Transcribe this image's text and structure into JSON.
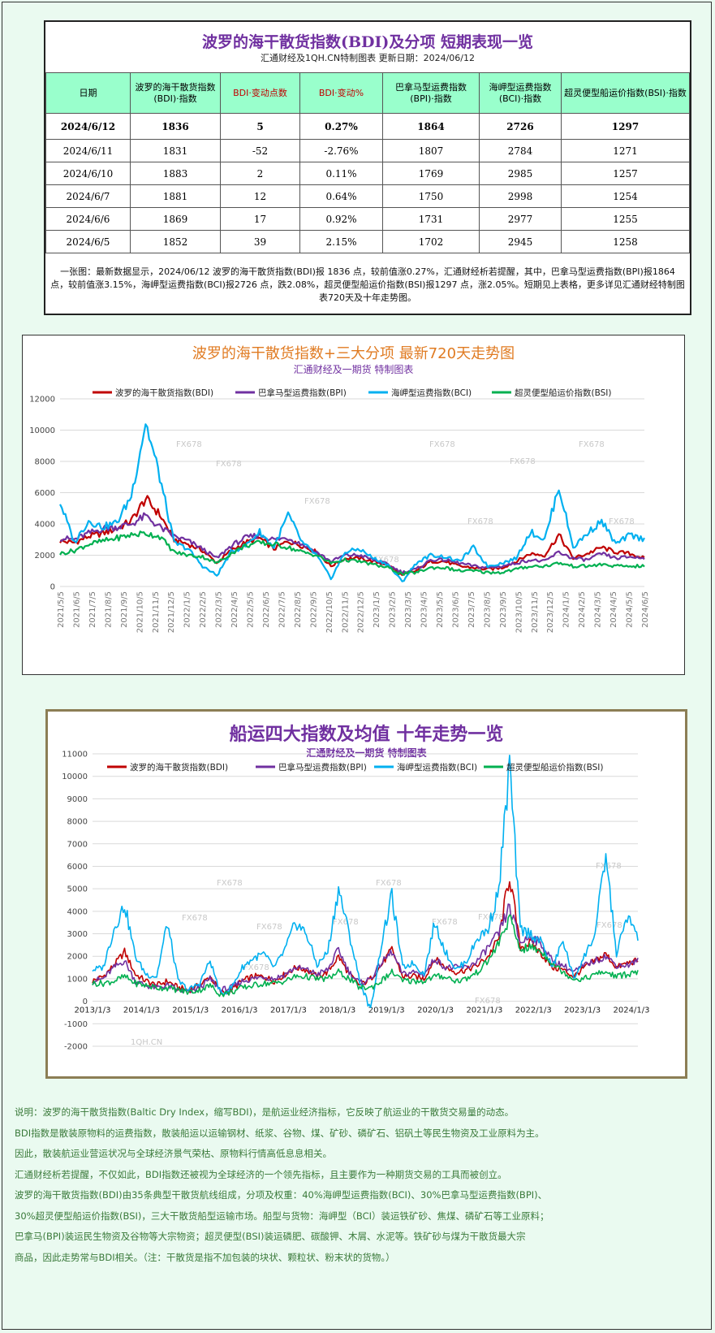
{
  "table": {
    "title": "波罗的海干散货指数(BDI)及分项 短期表现一览",
    "subtitle": "汇通财经及1QH.CN特制图表 更新日期：2024/06/12",
    "headers": [
      "日期",
      "波罗的海干散货指数(BDI)·指数",
      "BDI·变动点数",
      "BDI·变动%",
      "巴拿马型运费指数(BPI)·指数",
      "海岬型运费指数(BCI)·指数",
      "超灵便型船运价指数(BSI)·指数"
    ],
    "rows": [
      [
        "2024/6/12",
        "1836",
        "5",
        "0.27%",
        "1864",
        "2726",
        "1297"
      ],
      [
        "2024/6/11",
        "1831",
        "-52",
        "-2.76%",
        "1807",
        "2784",
        "1271"
      ],
      [
        "2024/6/10",
        "1883",
        "2",
        "0.11%",
        "1769",
        "2985",
        "1257"
      ],
      [
        "2024/6/7",
        "1881",
        "12",
        "0.64%",
        "1750",
        "2998",
        "1254"
      ],
      [
        "2024/6/6",
        "1869",
        "17",
        "0.92%",
        "1731",
        "2977",
        "1255"
      ],
      [
        "2024/6/5",
        "1852",
        "39",
        "2.15%",
        "1702",
        "2945",
        "1258"
      ]
    ],
    "note": "一张图：最新数据显示，2024/06/12 波罗的海干散货指数(BDI)报 1836 点，较前值涨0.27%，汇通财经析若提醒，其中，巴拿马型运费指数(BPI)报1864 点，较前值涨3.15%，海岬型运费指数(BCI)报2726 点，跌2.08%，超灵便型船运价指数(BSI)报1297 点，涨2.05%。短期见上表格，更多详见汇通财经特制图表720天及十年走势图。"
  },
  "chart_data": [
    {
      "type": "line",
      "title": "波罗的海干散货指数+三大分项 最新720天走势图",
      "subtitle": "汇通财经及一期货 特制图表",
      "ylim": [
        0,
        12000
      ],
      "yticks": [
        0,
        2000,
        4000,
        6000,
        8000,
        10000,
        12000
      ],
      "grid": true,
      "legend_position": "top",
      "x_labels": [
        "2021/5/5",
        "2021/6/5",
        "2021/7/5",
        "2021/8/5",
        "2021/9/5",
        "2021/10/5",
        "2021/11/5",
        "2021/12/5",
        "2022/1/5",
        "2022/2/5",
        "2022/3/5",
        "2022/4/5",
        "2022/5/5",
        "2022/6/5",
        "2022/7/5",
        "2022/8/5",
        "2022/9/5",
        "2022/10/5",
        "2022/11/5",
        "2022/12/5",
        "2023/1/5",
        "2023/2/5",
        "2023/3/5",
        "2023/4/5",
        "2023/5/5",
        "2023/6/5",
        "2023/7/5",
        "2023/8/5",
        "2023/9/5",
        "2023/10/5",
        "2023/11/5",
        "2023/12/5",
        "2024/1/5",
        "2024/2/5",
        "2024/3/5",
        "2024/4/5",
        "2024/5/5",
        "2024/6/5"
      ],
      "watermarks": [
        "FX678",
        "FX678",
        "FX678",
        "FX678",
        "FX678",
        "FX678",
        "FX678",
        "FX678",
        "FX678"
      ],
      "series": [
        {
          "name": "波罗的海干散货指数(BDI)",
          "color": "#c00000",
          "values": [
            2900,
            2800,
            3200,
            3400,
            3700,
            4200,
            5600,
            4600,
            3000,
            2700,
            2300,
            1500,
            2300,
            2800,
            3100,
            2400,
            2900,
            2600,
            2200,
            1300,
            1800,
            1800,
            1600,
            1400,
            700,
            1000,
            1600,
            1600,
            1300,
            1200,
            1100,
            1200,
            1600,
            2100,
            2000,
            3300,
            1800,
            2100,
            2500,
            2200,
            2100,
            1800
          ]
        },
        {
          "name": "巴拿马型运费指数(BPI)",
          "color": "#7030a0",
          "values": [
            3100,
            3000,
            3400,
            3700,
            3800,
            4000,
            4500,
            3800,
            3200,
            2900,
            2400,
            1800,
            2600,
            3100,
            3300,
            3000,
            3100,
            2700,
            2200,
            1600,
            2000,
            2000,
            1700,
            1400,
            900,
            1100,
            1700,
            1700,
            1500,
            1300,
            1200,
            1300,
            1500,
            1700,
            1600,
            2200,
            1800,
            1700,
            2100,
            1800,
            1900,
            1800
          ]
        },
        {
          "name": "海岬型运费指数(BCI)",
          "color": "#00b0f0",
          "values": [
            5400,
            2800,
            4200,
            3800,
            4100,
            5800,
            10500,
            7000,
            2800,
            2400,
            1300,
            700,
            2200,
            2600,
            3500,
            2500,
            4600,
            2800,
            2000,
            500,
            2200,
            2400,
            1800,
            1400,
            300,
            1500,
            2000,
            1900,
            1600,
            2500,
            1300,
            1500,
            1800,
            3500,
            3000,
            6400,
            2500,
            3400,
            4200,
            2700,
            3300,
            3000
          ]
        },
        {
          "name": "超灵便型船运价指数(BSI)",
          "color": "#00b050",
          "values": [
            2100,
            2300,
            2700,
            2900,
            3100,
            3300,
            3400,
            3200,
            2200,
            2000,
            1900,
            1500,
            2100,
            2600,
            2800,
            2700,
            2500,
            2200,
            2000,
            1500,
            1700,
            1600,
            1400,
            1200,
            800,
            900,
            1200,
            1200,
            1000,
            1000,
            900,
            900,
            1100,
            1300,
            1300,
            1500,
            1300,
            1300,
            1400,
            1300,
            1300,
            1300
          ]
        }
      ]
    },
    {
      "type": "line",
      "title": "船运四大指数及均值 十年走势一览",
      "subtitle": "汇通财经及一期货 特制图表",
      "ylim": [
        -2000,
        11000
      ],
      "yticks": [
        -2000,
        -1000,
        0,
        1000,
        2000,
        3000,
        4000,
        5000,
        6000,
        7000,
        8000,
        9000,
        10000,
        11000
      ],
      "grid": true,
      "legend_position": "top",
      "x_labels": [
        "2013/1/3",
        "2014/1/3",
        "2015/1/3",
        "2016/1/3",
        "2017/1/3",
        "2018/1/3",
        "2019/1/3",
        "2020/1/3",
        "2021/1/3",
        "2022/1/3",
        "2023/1/3",
        "2024/1/3"
      ],
      "watermarks": [
        "FX678",
        "FX678",
        "FX678",
        "FX678",
        "FX678",
        "FX678",
        "FX678",
        "FX678",
        "FX678",
        "FX678",
        "FX678",
        "1QH.CN"
      ],
      "series": [
        {
          "name": "波罗的海干散货指数(BDI)",
          "color": "#c00000",
          "values": [
            900,
            1100,
            1600,
            2200,
            1200,
            900,
            700,
            900,
            600,
            500,
            700,
            1100,
            400,
            500,
            900,
            1100,
            1100,
            900,
            1200,
            1500,
            1400,
            1100,
            1300,
            2000,
            1200,
            700,
            1000,
            1600,
            2300,
            1100,
            1100,
            1000,
            1900,
            1500,
            1300,
            1400,
            1600,
            2000,
            2800,
            5600,
            2400,
            2600,
            2100,
            1500,
            1400,
            1100,
            1500,
            1800,
            2100,
            1500,
            1700,
            1800
          ]
        },
        {
          "name": "巴拿马型运费指数(BPI)",
          "color": "#7030a0",
          "values": [
            900,
            1000,
            1500,
            1800,
            900,
            700,
            600,
            700,
            500,
            400,
            600,
            1000,
            500,
            600,
            900,
            1000,
            1100,
            1000,
            1200,
            1500,
            1400,
            1200,
            1400,
            2300,
            1300,
            800,
            1000,
            1700,
            2200,
            1200,
            1300,
            1200,
            1900,
            1500,
            1500,
            1500,
            1800,
            2400,
            3000,
            4200,
            2600,
            2900,
            2500,
            1800,
            1600,
            1300,
            1600,
            1800,
            2000,
            1600,
            1600,
            1800
          ]
        },
        {
          "name": "海岬型运费指数(BCI)",
          "color": "#00b0f0",
          "values": [
            1400,
            1500,
            3200,
            4300,
            2000,
            1200,
            1100,
            3500,
            900,
            500,
            800,
            1800,
            300,
            600,
            1500,
            1900,
            2100,
            1500,
            2300,
            3500,
            3000,
            1600,
            2200,
            5000,
            3000,
            900,
            -400,
            2500,
            4700,
            1500,
            1700,
            1200,
            3500,
            2200,
            1400,
            1800,
            2800,
            3200,
            5000,
            10500,
            3200,
            3000,
            2600,
            1500,
            2700,
            1000,
            2000,
            3000,
            6500,
            2100,
            3800,
            2800
          ]
        },
        {
          "name": "超灵便型船运价指数(BSI)",
          "color": "#00b050",
          "values": [
            800,
            800,
            900,
            1100,
            800,
            700,
            600,
            600,
            500,
            400,
            500,
            700,
            300,
            400,
            600,
            700,
            800,
            800,
            900,
            1100,
            1100,
            1000,
            1000,
            1300,
            1000,
            600,
            600,
            900,
            1300,
            900,
            900,
            900,
            1100,
            1100,
            900,
            1000,
            1300,
            1800,
            2600,
            3700,
            2300,
            2400,
            2200,
            1700,
            1300,
            1000,
            1000,
            1200,
            1300,
            1100,
            1200,
            1300
          ]
        }
      ]
    }
  ],
  "description": [
    "说明：波罗的海干散货指数(Baltic Dry Index，缩写BDI)，是航运业经济指标，它反映了航运业的干散货交易量的动态。",
    "BDI指数是散装原物料的运费指数，散装船运以运输钢材、纸浆、谷物、煤、矿砂、磷矿石、铝矾土等民生物资及工业原料为主。",
    "因此，散装航运业营运状况与全球经济景气荣枯、原物料行情高低息息相关。",
    "汇通财经析若提醒，不仅如此，BDI指数还被视为全球经济的一个领先指标，且主要作为一种期货交易的工具而被创立。",
    "波罗的海干散货指数(BDI)由35条典型干散货航线组成，分项及权重：40%海岬型运费指数(BCI)、30%巴拿马型运费指数(BPI)、",
    "30%超灵便型船运价指数(BSI)，三大干散货船型运输市场。船型与货物：海岬型（BCI）装运铁矿砂、焦煤、磷矿石等工业原料；",
    "巴拿马(BPI)装运民生物资及谷物等大宗物资；超灵便型(BSI)装运磷肥、碳酸钾、木屑、水泥等。铁矿砂与煤为干散货最大宗",
    "商品，因此走势常与BDI相关。（注：干散货是指不加包装的块状、颗粒状、粉末状的货物。）"
  ]
}
